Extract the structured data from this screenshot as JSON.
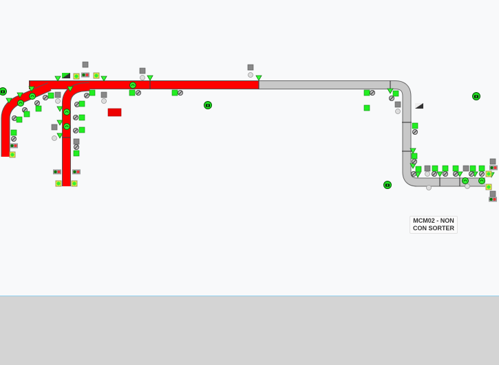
{
  "area_label": "MCM02 - NON CON SORTER",
  "colors": {
    "faulted_conveyor": "#ff0000",
    "idle_conveyor": "#c8c8c8",
    "device_ok": "#22ee22",
    "background": "#f8f9fa",
    "bottom_panel": "#d4d4d4"
  },
  "icons": [
    "camera-icon",
    "photo-eye-icon",
    "motor-icon",
    "disconnect-icon",
    "status-box-icon",
    "beacon-icon",
    "jam-indicator-icon"
  ]
}
